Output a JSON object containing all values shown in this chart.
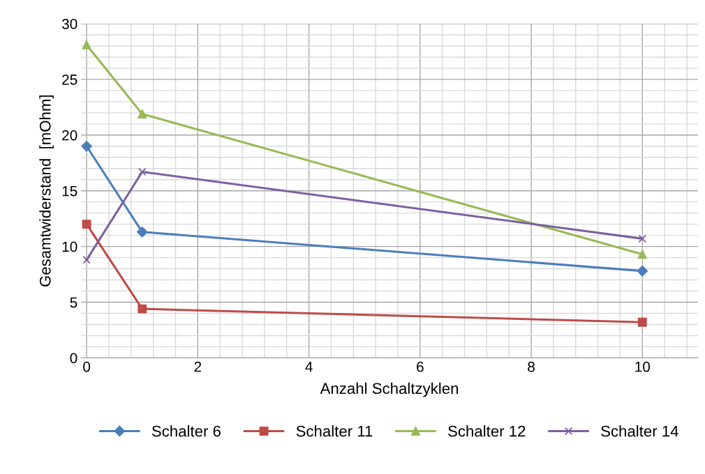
{
  "chart_data": {
    "type": "line",
    "xlabel": "Anzahl Schaltzyklen",
    "ylabel": "Gesamtwiderstand  [mOhm]",
    "x": [
      0,
      1,
      10
    ],
    "series": [
      {
        "name": "Schalter 6",
        "color": "#4a7ebb",
        "marker": "diamond",
        "values": [
          19.0,
          11.3,
          7.8
        ]
      },
      {
        "name": "Schalter 11",
        "color": "#be4b48",
        "marker": "square",
        "values": [
          12.0,
          4.4,
          3.2
        ]
      },
      {
        "name": "Schalter 12",
        "color": "#98b954",
        "marker": "triangle",
        "values": [
          28.1,
          21.9,
          9.3
        ]
      },
      {
        "name": "Schalter 14",
        "color": "#7d60a0",
        "marker": "cross",
        "values": [
          8.8,
          16.7,
          10.7
        ]
      }
    ],
    "xlim": [
      -0.1,
      11
    ],
    "xticks": [
      0,
      2,
      4,
      6,
      8,
      10
    ],
    "ylim": [
      0,
      30
    ],
    "yticks": [
      0,
      5,
      10,
      15,
      20,
      25,
      30
    ],
    "grid": true,
    "legend": "bottom",
    "line_style": "solid"
  }
}
